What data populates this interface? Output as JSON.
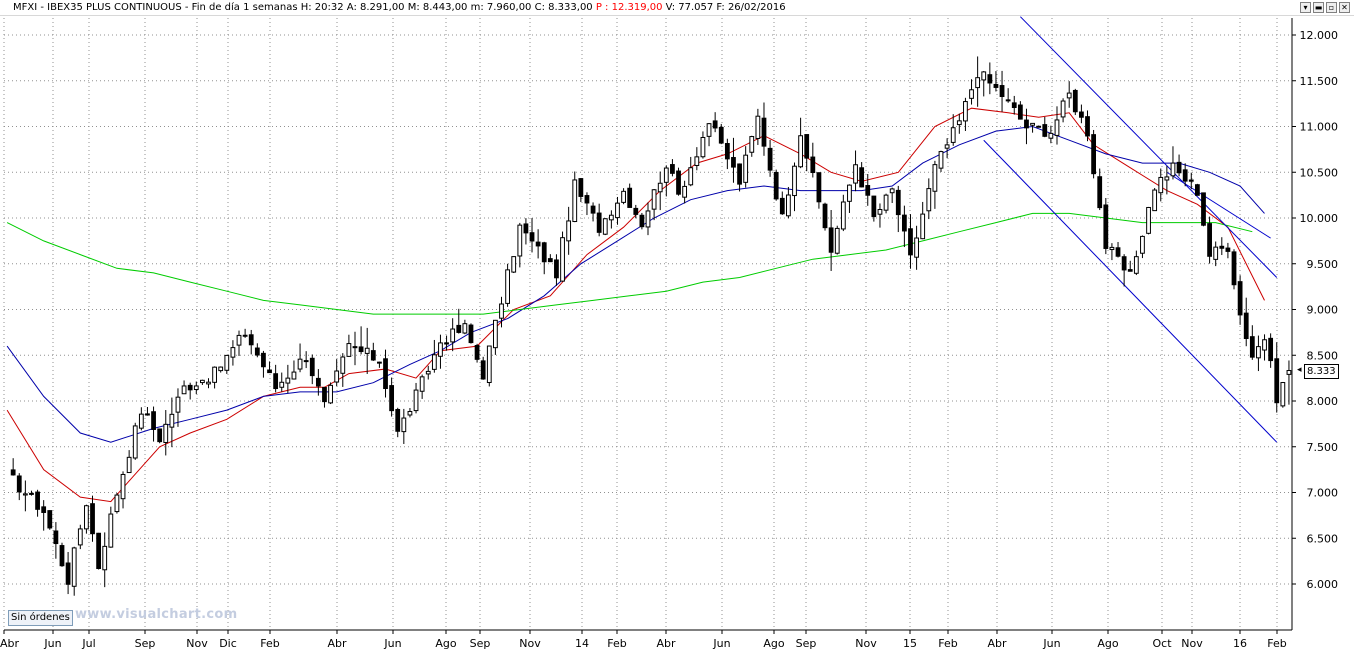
{
  "window": {
    "title_parts": [
      "MFXI - IBEX35 PLUS CONTINUOUS - Fin de día 1 semanas H: 20:32  A: 8.291,00  M: 8.443,00  m: 7.960,00  C: 8.333,00  ",
      "P : 12.319,00",
      "  V: 77.057  F: 26/02/2016"
    ],
    "buttons": [
      "▾",
      "▬",
      "▫",
      "✕"
    ]
  },
  "watermark": "www.visualchart.com",
  "orders_label": "Sin órdenes",
  "last_price_label": "8.333",
  "colors": {
    "candle_up": "#ffffff",
    "candle_down": "#000000",
    "ma_short": "#cc0000",
    "ma_medium": "#0000aa",
    "ma_long": "#00cc00",
    "trend_channel": "#0000cc",
    "grid": "#909090",
    "price_highlight": "#ff0000"
  },
  "chart_data": {
    "type": "candlestick",
    "symbol": "IBEX35 PLUS CONTINUOUS",
    "timeframe": "1 semanas",
    "x_tick_labels": [
      "Abr",
      "Jun",
      "Jul",
      "Sep",
      "Nov",
      "Dic",
      "Feb",
      "Abr",
      "Jun",
      "Ago",
      "Sep",
      "Nov",
      "14",
      "Feb",
      "Abr",
      "Jun",
      "Ago",
      "Sep",
      "Nov",
      "15",
      "Feb",
      "Abr",
      "Jun",
      "Ago",
      "Oct",
      "Nov",
      "16",
      "Feb"
    ],
    "y_ticks": [
      "12.000",
      "11.500",
      "11.000",
      "10.500",
      "10.000",
      "9.500",
      "9.000",
      "8.500",
      "8.000",
      "7.500",
      "7.000",
      "6.500",
      "6.000"
    ],
    "y_tick_values": [
      12000,
      11500,
      11000,
      10500,
      10000,
      9500,
      9000,
      8500,
      8000,
      7500,
      7000,
      6500,
      6000
    ],
    "ylim": [
      5500,
      12300
    ],
    "grid": true,
    "candle_anchors": [
      [
        0,
        7200
      ],
      [
        6,
        6800
      ],
      [
        10,
        6050
      ],
      [
        13,
        6900
      ],
      [
        15,
        6200
      ],
      [
        18,
        7000
      ],
      [
        22,
        7900
      ],
      [
        25,
        7600
      ],
      [
        29,
        8150
      ],
      [
        34,
        8300
      ],
      [
        39,
        8750
      ],
      [
        44,
        8150
      ],
      [
        49,
        8500
      ],
      [
        52,
        7950
      ],
      [
        56,
        8600
      ],
      [
        61,
        8450
      ],
      [
        64,
        7650
      ],
      [
        68,
        8200
      ],
      [
        71,
        8650
      ],
      [
        75,
        8800
      ],
      [
        78,
        8300
      ],
      [
        81,
        9100
      ],
      [
        84,
        9900
      ],
      [
        90,
        9400
      ],
      [
        93,
        10350
      ],
      [
        97,
        9900
      ],
      [
        101,
        10300
      ],
      [
        104,
        9950
      ],
      [
        108,
        10600
      ],
      [
        110,
        10250
      ],
      [
        115,
        11050
      ],
      [
        120,
        10400
      ],
      [
        123,
        11100
      ],
      [
        127,
        10000
      ],
      [
        130,
        10950
      ],
      [
        135,
        9650
      ],
      [
        139,
        10600
      ],
      [
        142,
        10000
      ],
      [
        145,
        10300
      ],
      [
        148,
        9550
      ],
      [
        152,
        10550
      ],
      [
        156,
        11050
      ],
      [
        159,
        11600
      ],
      [
        163,
        11350
      ],
      [
        167,
        11000
      ],
      [
        171,
        10950
      ],
      [
        174,
        11350
      ],
      [
        177,
        10950
      ],
      [
        180,
        9700
      ],
      [
        184,
        9350
      ],
      [
        188,
        10350
      ],
      [
        191,
        10550
      ],
      [
        195,
        10300
      ],
      [
        197,
        9600
      ],
      [
        200,
        9700
      ],
      [
        202,
        8950
      ],
      [
        204,
        8500
      ],
      [
        206,
        8700
      ],
      [
        208,
        8050
      ],
      [
        210,
        8300
      ]
    ],
    "last_ohlc": {
      "open": 8291,
      "high": 8443,
      "low": 7960,
      "close": 8333
    },
    "series": [
      {
        "name": "",
        "color": "#cc0000",
        "style": "line",
        "points": [
          [
            0,
            7900
          ],
          [
            6,
            7250
          ],
          [
            12,
            6950
          ],
          [
            17,
            6900
          ],
          [
            21,
            7200
          ],
          [
            25,
            7500
          ],
          [
            30,
            7650
          ],
          [
            36,
            7800
          ],
          [
            42,
            8050
          ],
          [
            48,
            8150
          ],
          [
            52,
            8150
          ],
          [
            56,
            8300
          ],
          [
            62,
            8350
          ],
          [
            67,
            8250
          ],
          [
            71,
            8550
          ],
          [
            77,
            8600
          ],
          [
            83,
            9000
          ],
          [
            89,
            9150
          ],
          [
            95,
            9600
          ],
          [
            101,
            9900
          ],
          [
            107,
            10300
          ],
          [
            113,
            10600
          ],
          [
            118,
            10700
          ],
          [
            124,
            10900
          ],
          [
            130,
            10700
          ],
          [
            135,
            10500
          ],
          [
            140,
            10400
          ],
          [
            146,
            10500
          ],
          [
            152,
            11000
          ],
          [
            158,
            11200
          ],
          [
            164,
            11150
          ],
          [
            169,
            11100
          ],
          [
            174,
            11150
          ],
          [
            178,
            10800
          ],
          [
            184,
            10550
          ],
          [
            190,
            10300
          ],
          [
            195,
            10150
          ],
          [
            200,
            9900
          ],
          [
            206,
            9100
          ]
        ]
      },
      {
        "name": "",
        "color": "#0000aa",
        "style": "line",
        "points": [
          [
            0,
            8600
          ],
          [
            6,
            8050
          ],
          [
            12,
            7650
          ],
          [
            17,
            7550
          ],
          [
            24,
            7700
          ],
          [
            30,
            7800
          ],
          [
            36,
            7900
          ],
          [
            42,
            8050
          ],
          [
            48,
            8100
          ],
          [
            54,
            8100
          ],
          [
            60,
            8200
          ],
          [
            66,
            8400
          ],
          [
            71,
            8550
          ],
          [
            76,
            8750
          ],
          [
            82,
            8900
          ],
          [
            88,
            9150
          ],
          [
            94,
            9500
          ],
          [
            100,
            9750
          ],
          [
            106,
            10000
          ],
          [
            112,
            10200
          ],
          [
            118,
            10300
          ],
          [
            124,
            10350
          ],
          [
            130,
            10300
          ],
          [
            135,
            10300
          ],
          [
            140,
            10300
          ],
          [
            145,
            10350
          ],
          [
            150,
            10600
          ],
          [
            156,
            10800
          ],
          [
            162,
            10950
          ],
          [
            168,
            11000
          ],
          [
            174,
            10850
          ],
          [
            180,
            10700
          ],
          [
            186,
            10600
          ],
          [
            192,
            10600
          ],
          [
            197,
            10500
          ],
          [
            202,
            10350
          ],
          [
            206,
            10050
          ]
        ]
      },
      {
        "name": "",
        "color": "#00cc00",
        "style": "line",
        "points": [
          [
            0,
            9950
          ],
          [
            6,
            9750
          ],
          [
            12,
            9600
          ],
          [
            18,
            9450
          ],
          [
            24,
            9400
          ],
          [
            30,
            9300
          ],
          [
            36,
            9200
          ],
          [
            42,
            9100
          ],
          [
            48,
            9050
          ],
          [
            54,
            9000
          ],
          [
            60,
            8950
          ],
          [
            66,
            8950
          ],
          [
            72,
            8950
          ],
          [
            78,
            8950
          ],
          [
            84,
            9000
          ],
          [
            90,
            9050
          ],
          [
            96,
            9100
          ],
          [
            102,
            9150
          ],
          [
            108,
            9200
          ],
          [
            114,
            9300
          ],
          [
            120,
            9350
          ],
          [
            126,
            9450
          ],
          [
            132,
            9550
          ],
          [
            138,
            9600
          ],
          [
            144,
            9650
          ],
          [
            150,
            9750
          ],
          [
            156,
            9850
          ],
          [
            162,
            9950
          ],
          [
            168,
            10050
          ],
          [
            174,
            10050
          ],
          [
            180,
            10000
          ],
          [
            186,
            9950
          ],
          [
            192,
            9950
          ],
          [
            198,
            9950
          ],
          [
            204,
            9850
          ]
        ]
      }
    ],
    "trendlines": [
      {
        "from": [
          166,
          12200
        ],
        "to": [
          208,
          9350
        ]
      },
      {
        "from": [
          160,
          10850
        ],
        "to": [
          208,
          7550
        ]
      },
      {
        "from": [
          190,
          10500
        ],
        "to": [
          207,
          9780
        ]
      }
    ]
  }
}
